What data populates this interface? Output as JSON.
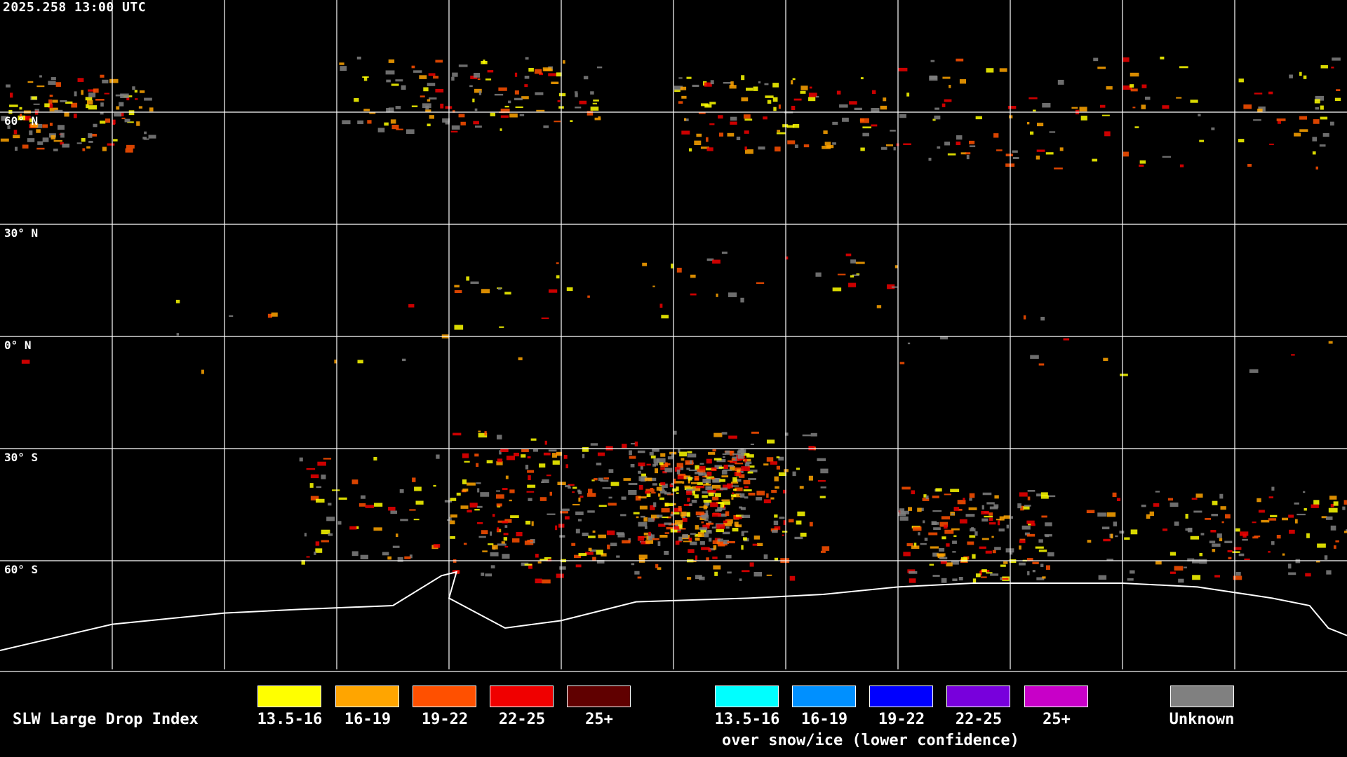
{
  "header": {
    "timestamp": "2025.258 13:00 UTC"
  },
  "map": {
    "projection": "equirectangular",
    "grid_lon_step_deg": 30,
    "grid_lat_step_deg": 30,
    "lat_labels": [
      "60° N",
      "30° N",
      "0° N",
      "30° S",
      "60° S"
    ],
    "grid_color": "#ffffff",
    "coastline_color": "#ffffff"
  },
  "legend": {
    "title": "SLW Large Drop Index",
    "bins": [
      {
        "label": "13.5-16",
        "color": "#ffff00"
      },
      {
        "label": "16-19",
        "color": "#ffa500"
      },
      {
        "label": "19-22",
        "color": "#ff5000"
      },
      {
        "label": "22-25",
        "color": "#f00000"
      },
      {
        "label": "25+",
        "color": "#600000"
      }
    ],
    "snow_bins": [
      {
        "label": "13.5-16",
        "color": "#00ffff"
      },
      {
        "label": "16-19",
        "color": "#0090ff"
      },
      {
        "label": "19-22",
        "color": "#0000ff"
      },
      {
        "label": "22-25",
        "color": "#7800dc"
      },
      {
        "label": "25+",
        "color": "#c800c8"
      }
    ],
    "snow_caption": "over snow/ice (lower confidence)",
    "unknown": {
      "label": "Unknown",
      "color": "#808080"
    }
  }
}
